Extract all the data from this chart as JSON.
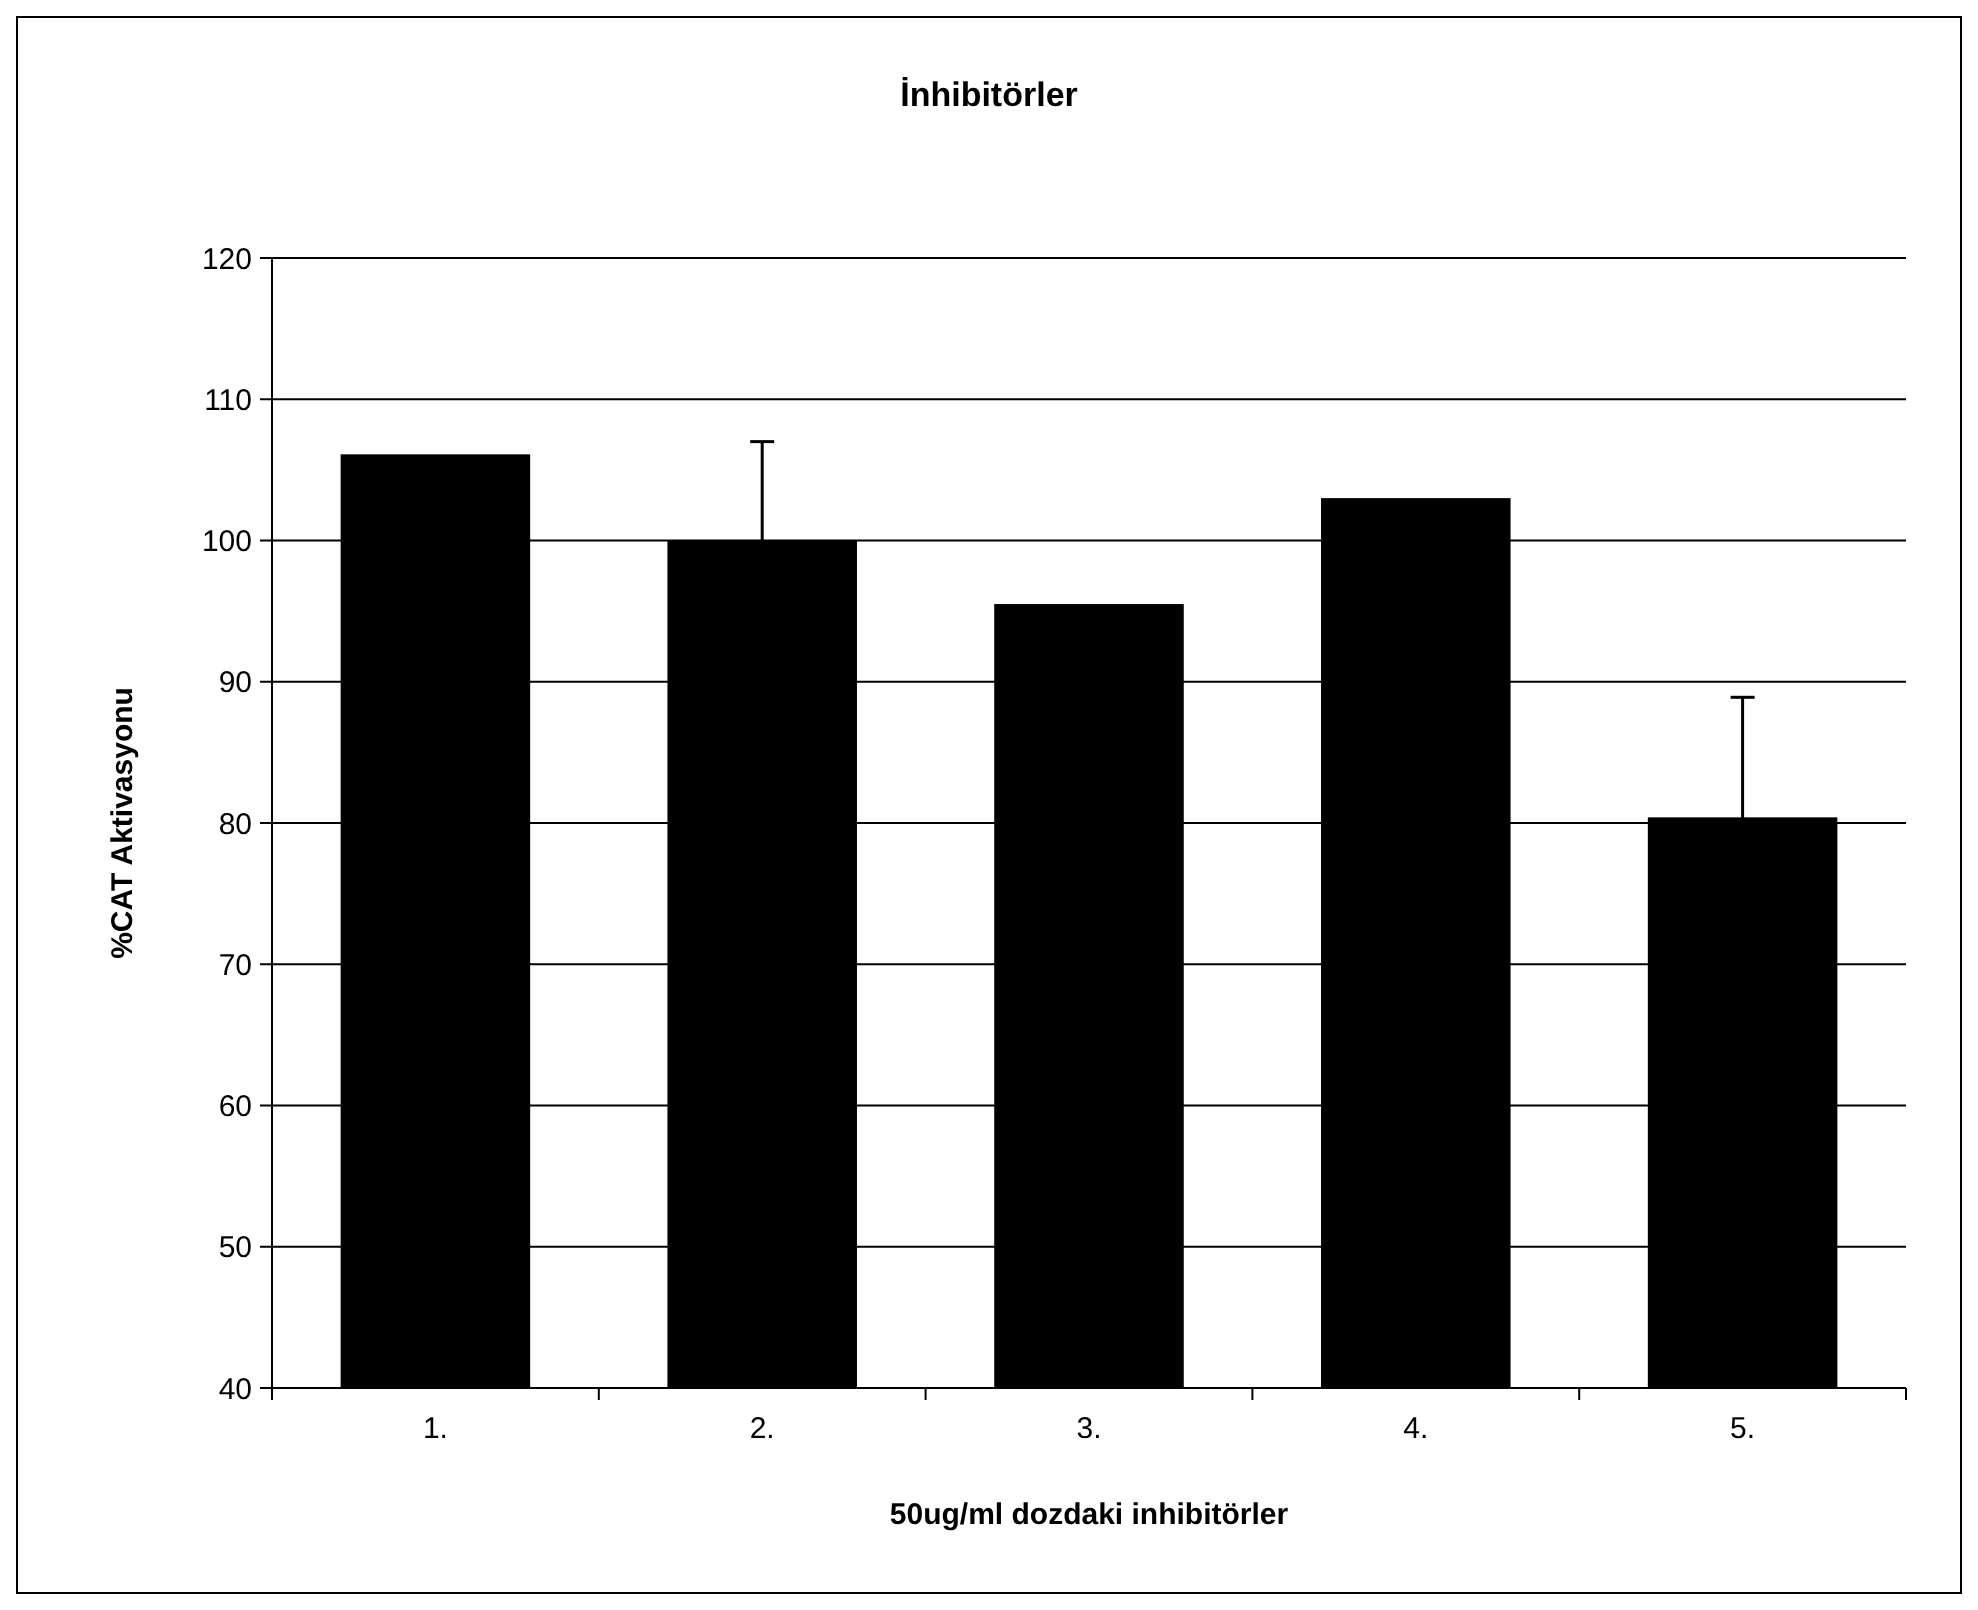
{
  "chart_data": {
    "type": "bar",
    "title": "İnhibitörler",
    "xlabel": "50ug/ml dozdaki inhibitörler",
    "ylabel": "%CAT  Aktivasyonu",
    "categories": [
      "1.",
      "2.",
      "3.",
      "4.",
      "5."
    ],
    "values": [
      106.1,
      100,
      95.5,
      103,
      80.4
    ],
    "errors": [
      null,
      7,
      null,
      null,
      8.5
    ],
    "color": "#000000",
    "ylim": [
      40,
      120
    ],
    "yticks": [
      40,
      50,
      60,
      70,
      80,
      90,
      100,
      110,
      120
    ],
    "grid": "y"
  }
}
